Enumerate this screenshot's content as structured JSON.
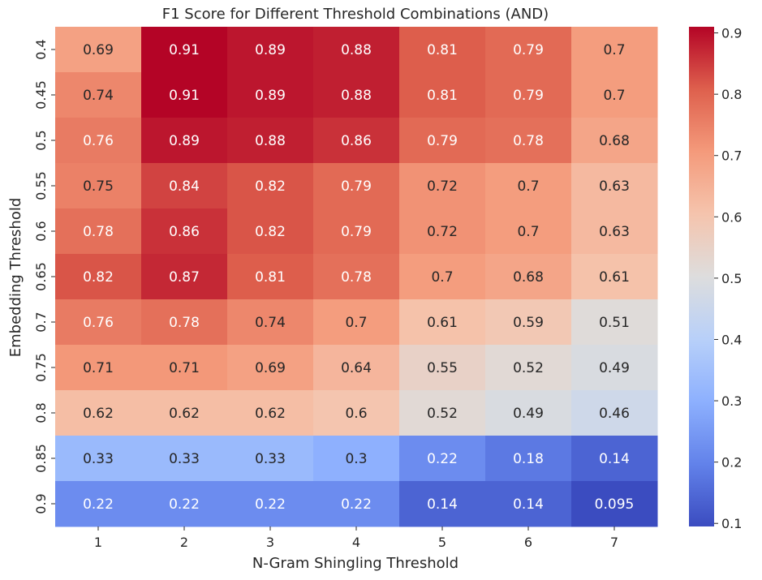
{
  "chart_data": {
    "type": "heatmap",
    "title": "F1 Score for Different Threshold Combinations (AND)",
    "xlabel": "N-Gram Shingling Threshold",
    "ylabel": "Embedding Threshold",
    "x_categories": [
      "1",
      "2",
      "3",
      "4",
      "5",
      "6",
      "7"
    ],
    "y_categories": [
      "0.4",
      "0.45",
      "0.5",
      "0.55",
      "0.6",
      "0.65",
      "0.7",
      "0.75",
      "0.8",
      "0.85",
      "0.9"
    ],
    "values": [
      [
        0.69,
        0.91,
        0.89,
        0.88,
        0.81,
        0.79,
        0.7
      ],
      [
        0.74,
        0.91,
        0.89,
        0.88,
        0.81,
        0.79,
        0.7
      ],
      [
        0.76,
        0.89,
        0.88,
        0.86,
        0.79,
        0.78,
        0.68
      ],
      [
        0.75,
        0.84,
        0.82,
        0.79,
        0.72,
        0.7,
        0.63
      ],
      [
        0.78,
        0.86,
        0.82,
        0.79,
        0.72,
        0.7,
        0.63
      ],
      [
        0.82,
        0.87,
        0.81,
        0.78,
        0.7,
        0.68,
        0.61
      ],
      [
        0.76,
        0.78,
        0.74,
        0.7,
        0.61,
        0.59,
        0.51
      ],
      [
        0.71,
        0.71,
        0.69,
        0.64,
        0.55,
        0.52,
        0.49
      ],
      [
        0.62,
        0.62,
        0.62,
        0.6,
        0.52,
        0.49,
        0.46
      ],
      [
        0.33,
        0.33,
        0.33,
        0.3,
        0.22,
        0.18,
        0.14
      ],
      [
        0.22,
        0.22,
        0.22,
        0.22,
        0.14,
        0.14,
        0.095
      ]
    ],
    "value_labels": [
      [
        "0.69",
        "0.91",
        "0.89",
        "0.88",
        "0.81",
        "0.79",
        "0.7"
      ],
      [
        "0.74",
        "0.91",
        "0.89",
        "0.88",
        "0.81",
        "0.79",
        "0.7"
      ],
      [
        "0.76",
        "0.89",
        "0.88",
        "0.86",
        "0.79",
        "0.78",
        "0.68"
      ],
      [
        "0.75",
        "0.84",
        "0.82",
        "0.79",
        "0.72",
        "0.7",
        "0.63"
      ],
      [
        "0.78",
        "0.86",
        "0.82",
        "0.79",
        "0.72",
        "0.7",
        "0.63"
      ],
      [
        "0.82",
        "0.87",
        "0.81",
        "0.78",
        "0.7",
        "0.68",
        "0.61"
      ],
      [
        "0.76",
        "0.78",
        "0.74",
        "0.7",
        "0.61",
        "0.59",
        "0.51"
      ],
      [
        "0.71",
        "0.71",
        "0.69",
        "0.64",
        "0.55",
        "0.52",
        "0.49"
      ],
      [
        "0.62",
        "0.62",
        "0.62",
        "0.6",
        "0.52",
        "0.49",
        "0.46"
      ],
      [
        "0.33",
        "0.33",
        "0.33",
        "0.3",
        "0.22",
        "0.18",
        "0.14"
      ],
      [
        "0.22",
        "0.22",
        "0.22",
        "0.22",
        "0.14",
        "0.14",
        "0.095"
      ]
    ],
    "colormap": "coolwarm",
    "color_range": [
      0.095,
      0.91
    ],
    "colorbar_ticks": [
      "0.1",
      "0.2",
      "0.3",
      "0.4",
      "0.5",
      "0.6",
      "0.7",
      "0.8",
      "0.9"
    ],
    "colorbar_tick_values": [
      0.1,
      0.2,
      0.3,
      0.4,
      0.5,
      0.6,
      0.7,
      0.8,
      0.9
    ]
  }
}
